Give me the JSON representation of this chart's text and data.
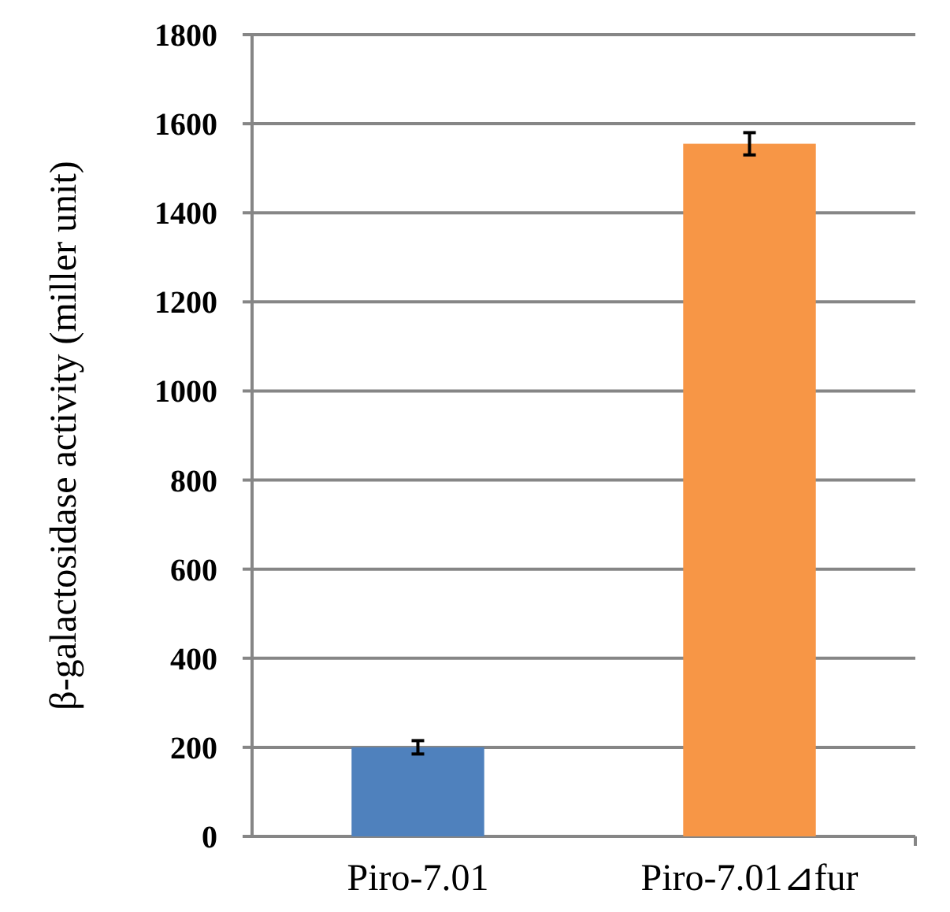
{
  "chart_data": {
    "type": "bar",
    "ylabel": "β-galactosidase activity (miller unit)",
    "categories": [
      "Piro-7.01",
      "Piro-7.01⊿fur"
    ],
    "values": [
      200,
      1555
    ],
    "colors": [
      "#4f81bd",
      "#f79646"
    ],
    "errors": [
      15,
      25
    ],
    "ylim": [
      0,
      1800
    ],
    "yticks": [
      0,
      200,
      400,
      600,
      800,
      1000,
      1200,
      1400,
      1600,
      1800
    ],
    "grid": "y"
  }
}
